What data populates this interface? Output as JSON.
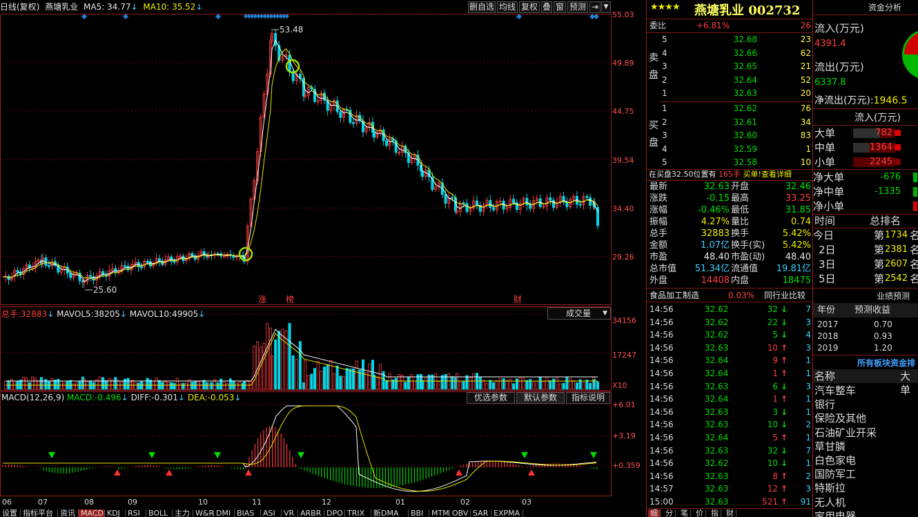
{
  "header": {
    "period": "日线(复权)",
    "stock_name": "燕塘乳业",
    "ma5_label": "MA5:",
    "ma5": "34.77",
    "ma10_label": "MA10:",
    "ma10": "35.52",
    "buttons": [
      "删自选",
      "均线",
      "复权",
      "叠",
      "窗",
      "预测"
    ]
  },
  "price_axis": [
    "55.03",
    "49.89",
    "44.75",
    "39.54",
    "34.40",
    "29.26"
  ],
  "markers": {
    "high": "53.48",
    "low": "25.60",
    "zhang": "涨",
    "bang": "榜",
    "cai": "财"
  },
  "volume": {
    "label_total": "总手:",
    "total": "32883",
    "mavol5_label": "MAVOL5:",
    "mavol5": "38205",
    "mavol10_label": "MAVOL10:",
    "mavol10": "49905",
    "selector": "成交量",
    "axis": [
      "34156",
      "17247",
      "X10"
    ]
  },
  "macd": {
    "label": "MACD(12,26,9)",
    "macd_label": "MACD:",
    "macd": "-0.496",
    "diff_label": "DIFF:",
    "diff": "-0.301",
    "dea_label": "DEA:",
    "dea": "-0.053",
    "buttons": [
      "优选参数",
      "默认参数",
      "指标说明"
    ],
    "axis": [
      "+6.01",
      "+3.19",
      "+0.359"
    ]
  },
  "months": [
    "06",
    "07",
    "08",
    "09",
    "10",
    "11",
    "12",
    "01",
    "02",
    "03"
  ],
  "bottom_tabs": [
    "设置",
    "指标平台",
    "资讯",
    "MACD",
    "KDJ",
    "RSI",
    "BOLL",
    "主力",
    "W&R",
    "DMI",
    "BIAS",
    "ASI",
    "VR",
    "ARBR",
    "DPO",
    "TRIX",
    "新DMA",
    "BBI",
    "MTM",
    "OBV",
    "SAR",
    "EXPMA"
  ],
  "quote": {
    "stars": "★★★★",
    "title": "燕塘乳业 002732",
    "weibi_label": "委比",
    "weibi": "+6.81%",
    "weicha": "26",
    "sell_label": "卖盘",
    "buy_label": "买盘",
    "sell": [
      {
        "n": "5",
        "p": "32.68",
        "v": "23"
      },
      {
        "n": "4",
        "p": "32.66",
        "v": "62"
      },
      {
        "n": "3",
        "p": "32.65",
        "v": "21"
      },
      {
        "n": "2",
        "p": "32.64",
        "v": "52"
      },
      {
        "n": "1",
        "p": "32.63",
        "v": "20"
      }
    ],
    "buy": [
      {
        "n": "1",
        "p": "32.62",
        "v": "76"
      },
      {
        "n": "2",
        "p": "32.61",
        "v": "34"
      },
      {
        "n": "3",
        "p": "32.60",
        "v": "83"
      },
      {
        "n": "4",
        "p": "32.59",
        "v": "1"
      },
      {
        "n": "5",
        "p": "32.58",
        "v": "10"
      }
    ],
    "notice_pre": "在买盘32.50位置有",
    "notice_vol": "165手",
    "notice_post": "买单!",
    "notice_link": "查看详细",
    "stats": [
      {
        "l1": "最新",
        "v1": "32.63",
        "c1": "grn",
        "l2": "开盘",
        "v2": "32.46",
        "c2": "grn"
      },
      {
        "l1": "涨跌",
        "v1": "-0.15",
        "c1": "grn",
        "l2": "最高",
        "v2": "33.25",
        "c2": "red"
      },
      {
        "l1": "涨幅",
        "v1": "-0.46%",
        "c1": "grn",
        "l2": "最低",
        "v2": "31.85",
        "c2": "grn"
      },
      {
        "l1": "振幅",
        "v1": "4.27%",
        "c1": "yel",
        "l2": "量比",
        "v2": "0.74",
        "c2": "yel"
      },
      {
        "l1": "总手",
        "v1": "32883",
        "c1": "yel",
        "l2": "换手",
        "v2": "5.42%",
        "c2": "yel"
      },
      {
        "l1": "金额",
        "v1": "1.07亿",
        "c1": "cy",
        "l2": "换手(实)",
        "v2": "5.42%",
        "c2": "yel"
      },
      {
        "l1": "市盈",
        "v1": "48.40",
        "c1": "wht",
        "l2": "市盈(动)",
        "v2": "48.40",
        "c2": "wht"
      },
      {
        "l1": "总市值",
        "v1": "51.34亿",
        "c1": "cy",
        "l2": "流通值",
        "v2": "19.81亿",
        "c2": "cy"
      },
      {
        "l1": "外盘",
        "v1": "14408",
        "c1": "red",
        "l2": "内盘",
        "v2": "18475",
        "c2": "grn"
      }
    ],
    "industry": "食品加工制造",
    "industry_pct": "0.03%",
    "industry_cmp": "同行业比较"
  },
  "ticks": [
    {
      "t": "14:56",
      "p": "32.62",
      "v": "32",
      "d": "down",
      "n": "7"
    },
    {
      "t": "14:56",
      "p": "32.62",
      "v": "22",
      "d": "down",
      "n": "3"
    },
    {
      "t": "14:56",
      "p": "32.62",
      "v": "5",
      "d": "down",
      "n": "4"
    },
    {
      "t": "14:56",
      "p": "32.63",
      "v": "10",
      "d": "up",
      "n": "3"
    },
    {
      "t": "14:56",
      "p": "32.64",
      "v": "9",
      "d": "up",
      "n": "1"
    },
    {
      "t": "14:56",
      "p": "32.64",
      "v": "1",
      "d": "up",
      "n": "1"
    },
    {
      "t": "14:56",
      "p": "32.63",
      "v": "6",
      "d": "down",
      "n": "3"
    },
    {
      "t": "14:56",
      "p": "32.64",
      "v": "1",
      "d": "up",
      "n": "1"
    },
    {
      "t": "14:56",
      "p": "32.63",
      "v": "3",
      "d": "down",
      "n": "1"
    },
    {
      "t": "14:56",
      "p": "32.63",
      "v": "10",
      "d": "down",
      "n": "2"
    },
    {
      "t": "14:56",
      "p": "32.64",
      "v": "5",
      "d": "up",
      "n": "1"
    },
    {
      "t": "14:56",
      "p": "32.63",
      "v": "32",
      "d": "down",
      "n": "7"
    },
    {
      "t": "14:56",
      "p": "32.62",
      "v": "10",
      "d": "down",
      "n": "1"
    },
    {
      "t": "14:56",
      "p": "32.63",
      "v": "8",
      "d": "up",
      "n": "2"
    },
    {
      "t": "14:57",
      "p": "32.63",
      "v": "12",
      "d": "up",
      "n": "3"
    },
    {
      "t": "15:00",
      "p": "32.63",
      "v": "521",
      "d": "up",
      "n": "91"
    }
  ],
  "bottom_right_tabs": [
    "细",
    "分",
    "笔",
    "价",
    "指",
    "财"
  ],
  "fund": {
    "title": "资金分析",
    "in_label": "流入(万元)",
    "in_val": "4391.4",
    "out_label": "流出(万元)",
    "out_val": "6337.8",
    "net_label": "净流出(万元):",
    "net_val": "1946.5",
    "sub_head": "流入(万元)",
    "flows": [
      {
        "l": "大单",
        "v": "782",
        "w": 0.35
      },
      {
        "l": "中单",
        "v": "1364",
        "w": 0.6
      },
      {
        "l": "小单",
        "v": "2245",
        "w": 1.0
      }
    ],
    "net": [
      {
        "l": "净大单",
        "v": "-676"
      },
      {
        "l": "净中单",
        "v": "-1335"
      },
      {
        "l": "净小单",
        "v": ""
      }
    ],
    "rank_head": [
      "时间",
      "总排名"
    ],
    "ranks": [
      {
        "t": "今日",
        "r": "1734"
      },
      {
        "t": "2日",
        "r": "2381"
      },
      {
        "t": "3日",
        "r": "2607"
      },
      {
        "t": "5日",
        "r": "2542"
      }
    ],
    "rank_pre": "第",
    "rank_suf": "名",
    "perf_title": "业绩预测",
    "perf_head": [
      "年份",
      "预测收益"
    ],
    "perf": [
      {
        "y": "2017",
        "e": "0.70"
      },
      {
        "y": "2018",
        "e": "0.93"
      },
      {
        "y": "2019",
        "e": "1.20"
      }
    ],
    "sector_title": "所有板块资金排",
    "sector_head": [
      "名称",
      "大单"
    ],
    "sectors": [
      "汽车整车",
      "银行",
      "保险及其他",
      "石油矿业开采",
      "草甘膦",
      "白色家电",
      "国防军工",
      "特斯拉",
      "无人机",
      "家用电器"
    ]
  },
  "colors": {
    "up": "#ff3c3c",
    "down": "#00d8e8",
    "ma5": "#ffffff",
    "ma10": "#e8e800",
    "frame": "#9a2020"
  }
}
